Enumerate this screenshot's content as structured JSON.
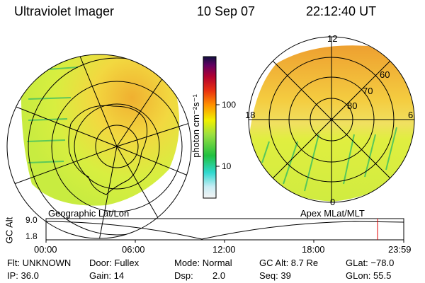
{
  "header": {
    "title": "Ultraviolet Imager",
    "date": "10 Sep 07",
    "time": "22:12:40 UT"
  },
  "colorbar": {
    "unit_label": "photon cm⁻²s⁻¹",
    "tick_100": "100",
    "tick_10": "10"
  },
  "left_map": {
    "label": "Geographic Lat/Lon"
  },
  "right_map": {
    "label": "Apex MLat/MLT",
    "mlt_12": "12",
    "mlt_18": "18",
    "mlt_6": "6",
    "mlt_0": "0",
    "mlat_60": "60",
    "mlat_70": "70",
    "mlat_80": "80"
  },
  "altitude_plot": {
    "ylabel": "GC Alt",
    "y_top": "9.0",
    "y_bottom": "1.8",
    "x_ticks": [
      "00:00",
      "06:00",
      "12:00",
      "18:00",
      "23:59"
    ],
    "current_time_marker_color": "#e00000"
  },
  "footer": {
    "filter": "Flt: UNKNOWN",
    "door": "Door: Fullex",
    "mode": "Mode: Normal",
    "gc_alt": "GC Alt: 8.7 Re",
    "glat": "GLat: −78.0",
    "ip": "IP: 36.0",
    "gain": "Gain: 14",
    "dsp_label": "Dsp:",
    "dsp_value": "2.0",
    "seq": "Seq: 39",
    "glon": "GLon:  55.5"
  }
}
